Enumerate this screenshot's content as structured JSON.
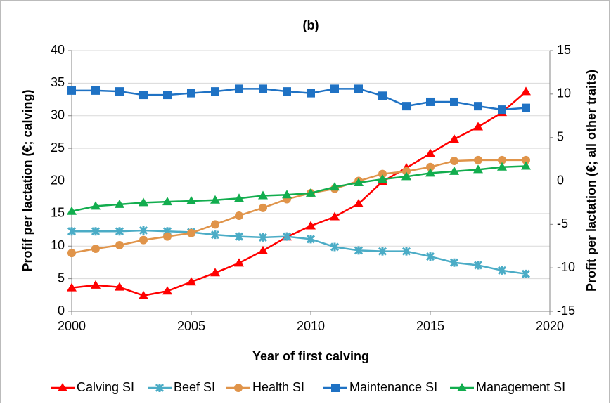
{
  "chart_data": {
    "type": "line",
    "title": "(b)",
    "x_label": "Year of first calving",
    "y_label": "Profif per lactation (€; calving)",
    "y2_label": "Profit per lactation (€; all other traits)",
    "x": [
      2000,
      2001,
      2002,
      2003,
      2004,
      2005,
      2006,
      2007,
      2008,
      2009,
      2010,
      2011,
      2012,
      2013,
      2014,
      2015,
      2016,
      2017,
      2018,
      2019
    ],
    "xlim": [
      2000,
      2020
    ],
    "xticks": [
      2000,
      2005,
      2010,
      2015,
      2020
    ],
    "ylim": [
      0,
      40
    ],
    "yticks": [
      0,
      5,
      10,
      15,
      20,
      25,
      30,
      35,
      40
    ],
    "y2lim": [
      -15,
      15
    ],
    "y2ticks": [
      -15,
      -10,
      -5,
      0,
      5,
      10,
      15
    ],
    "grid": true,
    "legend": "bottom",
    "series": [
      {
        "name": "Calving SI",
        "color": "#ff0000",
        "marker": "triangle",
        "axis": "y",
        "values": [
          3.6,
          4.0,
          3.7,
          2.4,
          3.1,
          4.5,
          5.9,
          7.4,
          9.3,
          11.4,
          13.1,
          14.5,
          16.5,
          19.9,
          22.0,
          24.2,
          26.4,
          28.3,
          30.5,
          33.7
        ]
      },
      {
        "name": "Beef SI",
        "color": "#4bacc6",
        "marker": "star",
        "axis": "y2",
        "values": [
          -5.8,
          -5.8,
          -5.8,
          -5.7,
          -5.8,
          -5.9,
          -6.2,
          -6.4,
          -6.5,
          -6.4,
          -6.7,
          -7.6,
          -8.0,
          -8.1,
          -8.1,
          -8.7,
          -9.4,
          -9.7,
          -10.3,
          -10.7
        ]
      },
      {
        "name": "Health SI",
        "color": "#e0944a",
        "marker": "circle",
        "axis": "y2",
        "values": [
          -8.3,
          -7.8,
          -7.4,
          -6.8,
          -6.4,
          -6.0,
          -5.0,
          -4.0,
          -3.1,
          -2.1,
          -1.4,
          -0.9,
          0,
          0.8,
          1.1,
          1.6,
          2.3,
          2.4,
          2.4,
          2.4
        ]
      },
      {
        "name": "Maintenance SI",
        "color": "#1f72c4",
        "marker": "square",
        "axis": "y2",
        "values": [
          10.4,
          10.4,
          10.3,
          9.9,
          9.9,
          10.1,
          10.3,
          10.6,
          10.6,
          10.3,
          10.1,
          10.6,
          10.6,
          9.8,
          8.6,
          9.1,
          9.1,
          8.6,
          8.2,
          8.4
        ]
      },
      {
        "name": "Management SI",
        "color": "#12ad4e",
        "marker": "triangle",
        "axis": "y2",
        "values": [
          -3.5,
          -2.9,
          -2.7,
          -2.5,
          -2.4,
          -2.3,
          -2.2,
          -2.0,
          -1.7,
          -1.6,
          -1.4,
          -0.7,
          -0.2,
          0.2,
          0.5,
          0.9,
          1.1,
          1.3,
          1.6,
          1.7
        ]
      }
    ]
  }
}
